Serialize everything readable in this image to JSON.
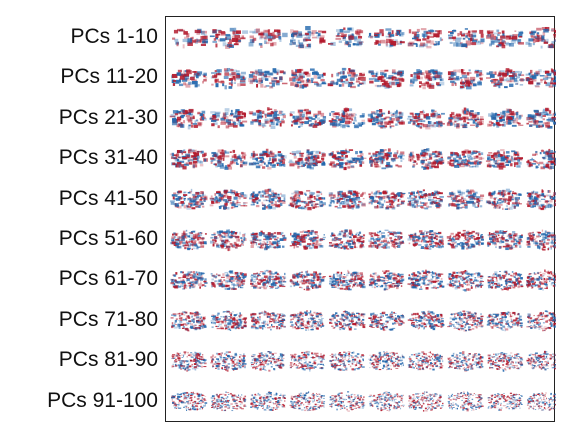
{
  "rows": [
    {
      "label": "PCs 1-10",
      "start": 1,
      "end": 10
    },
    {
      "label": "PCs 11-20",
      "start": 11,
      "end": 20
    },
    {
      "label": "PCs 21-30",
      "start": 21,
      "end": 30
    },
    {
      "label": "PCs 31-40",
      "start": 31,
      "end": 40
    },
    {
      "label": "PCs 41-50",
      "start": 41,
      "end": 50
    },
    {
      "label": "PCs 51-60",
      "start": 51,
      "end": 60
    },
    {
      "label": "PCs 61-70",
      "start": 61,
      "end": 70
    },
    {
      "label": "PCs 71-80",
      "start": 71,
      "end": 80
    },
    {
      "label": "PCs 81-90",
      "start": 81,
      "end": 90
    },
    {
      "label": "PCs 91-100",
      "start": 91,
      "end": 100
    }
  ],
  "columns_per_row": 10,
  "colors": {
    "positive": "#b2182b",
    "negative": "#2166ac",
    "background": "#ffffff",
    "frame": "#222222"
  }
}
